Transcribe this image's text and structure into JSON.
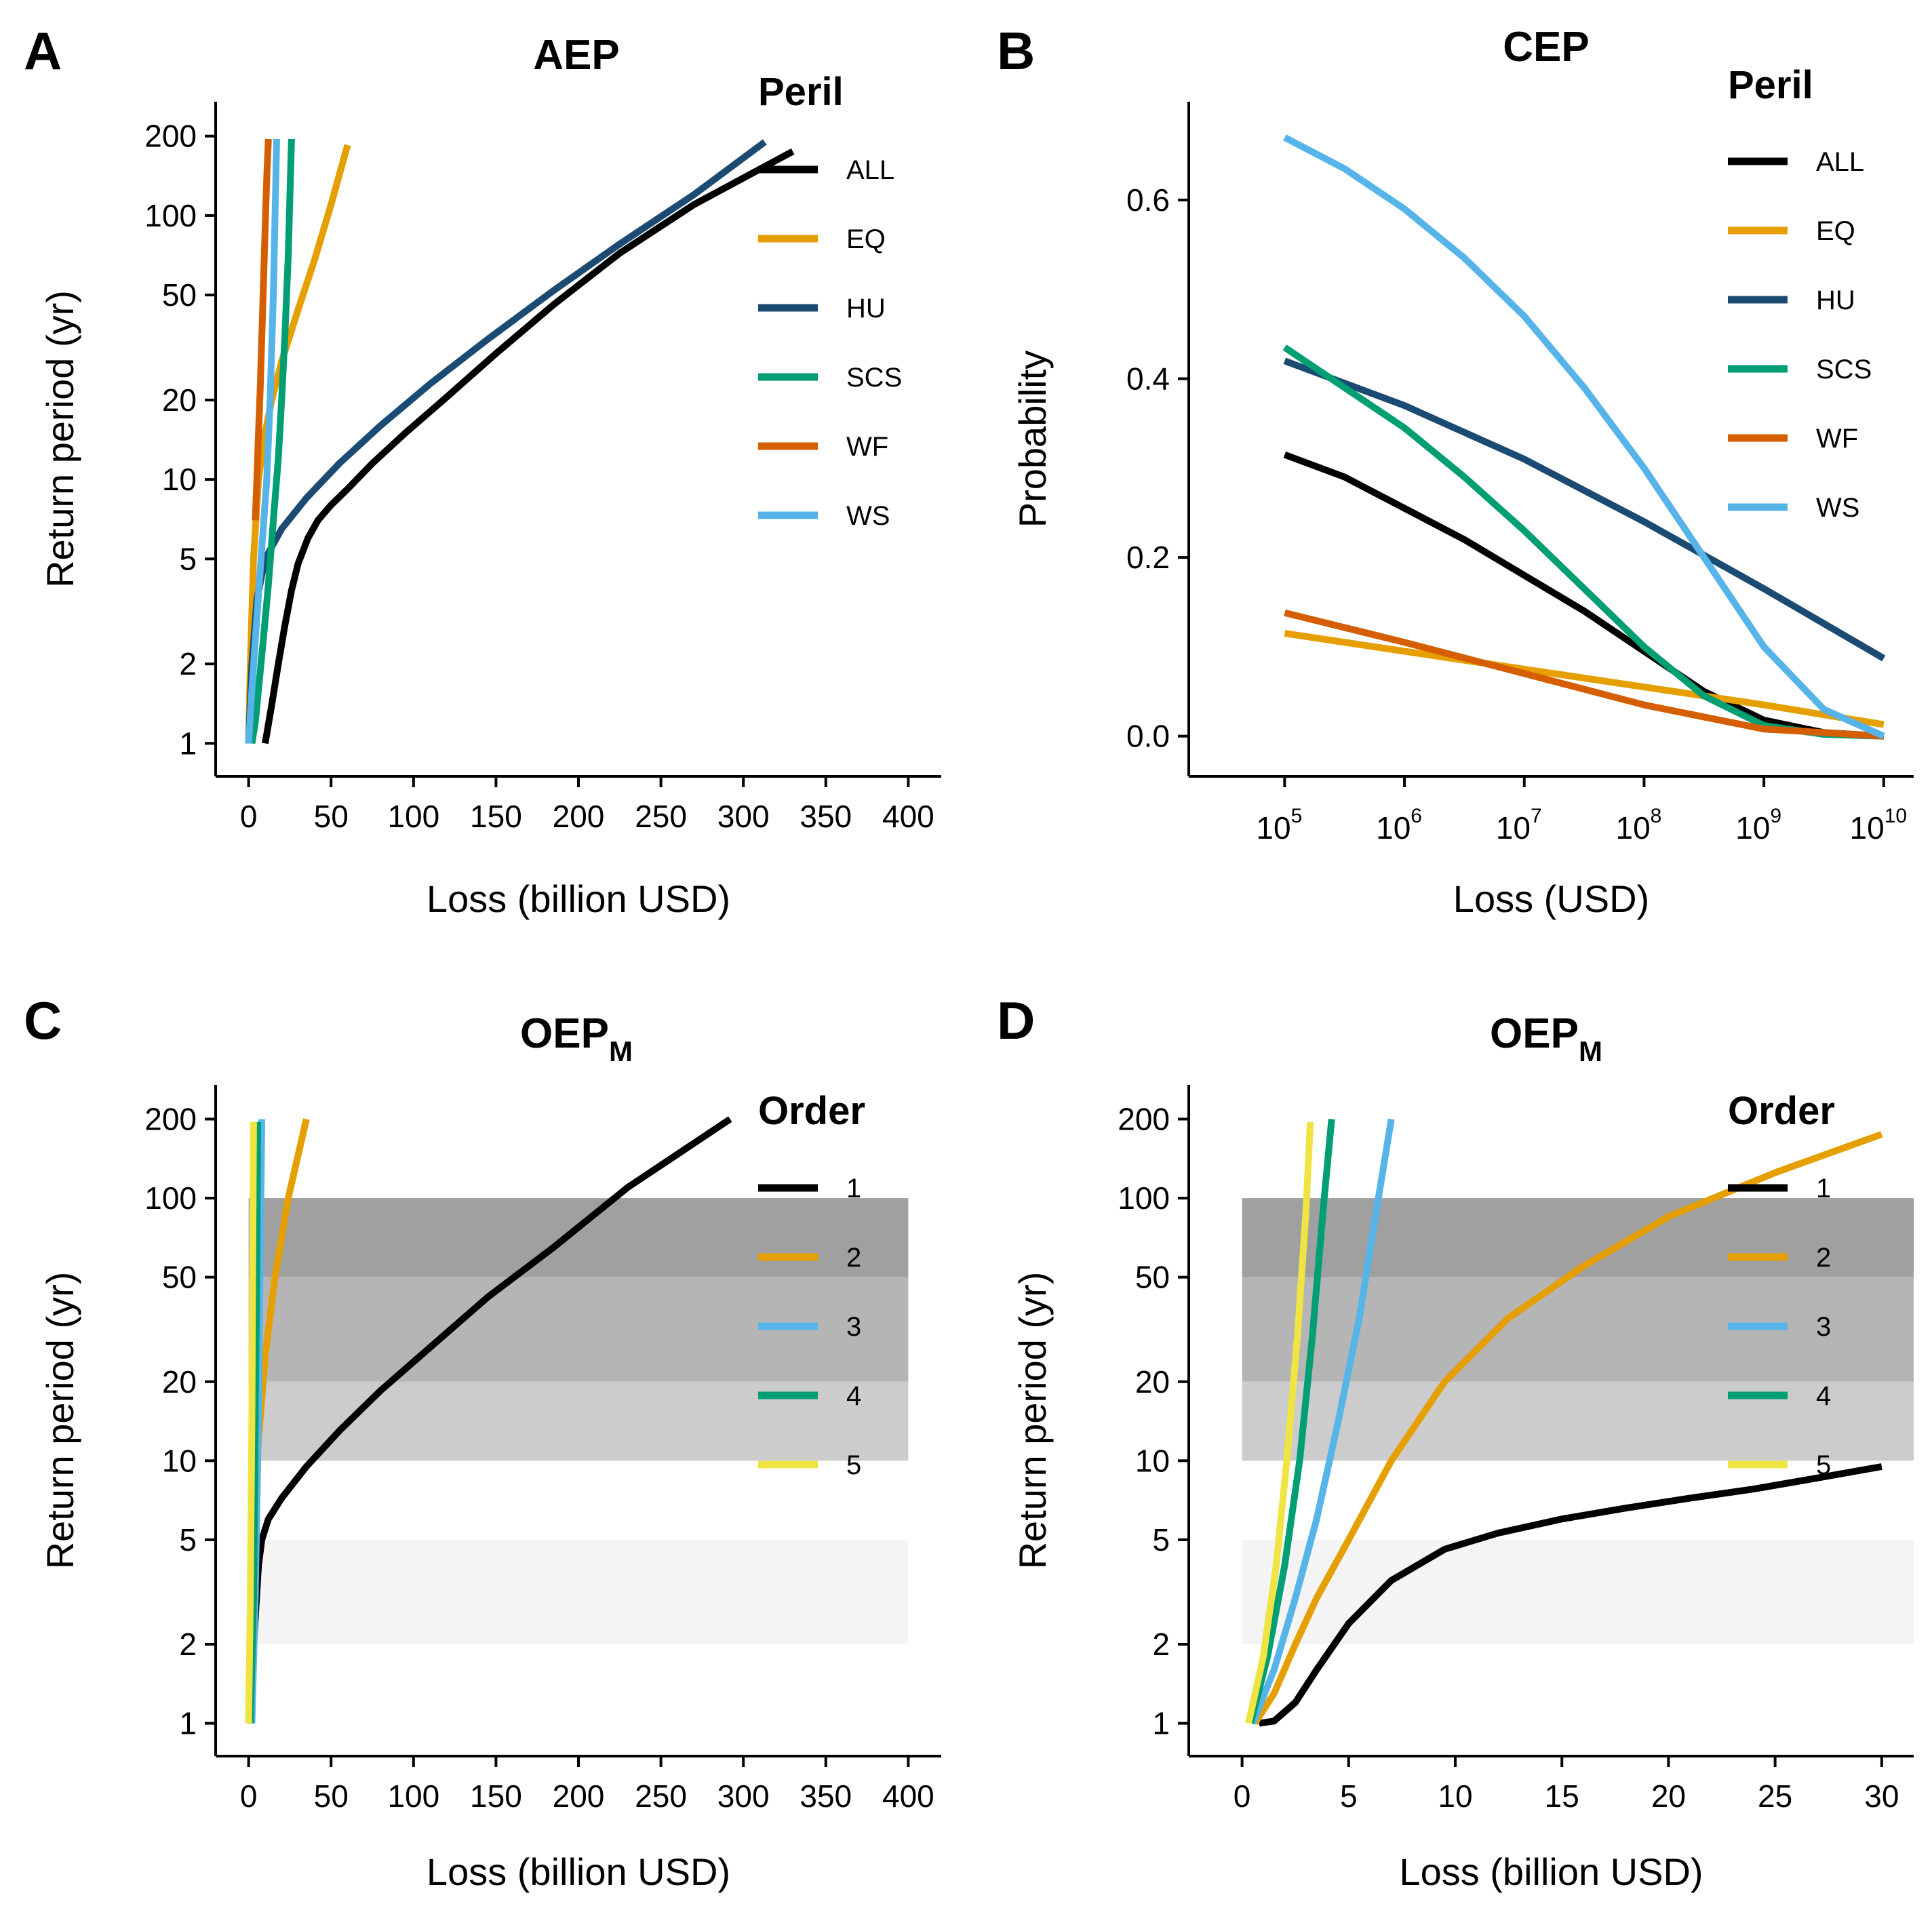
{
  "chart_data": [
    {
      "panel": "A",
      "type": "line",
      "title": "AEP",
      "xlabel": "Loss (billion USD)",
      "ylabel": "Return period (yr)",
      "xlim": [
        -20,
        420
      ],
      "ylim": [
        0.75,
        270
      ],
      "yscale": "log",
      "xticks": [
        0,
        50,
        100,
        150,
        200,
        250,
        300,
        350,
        400
      ],
      "yticks": [
        1,
        2,
        5,
        10,
        20,
        50,
        100,
        200
      ],
      "legend_title": "Peril",
      "legend_position": "top-right",
      "series": [
        {
          "name": "ALL",
          "color": "#000000",
          "x": [
            10,
            14,
            18,
            22,
            26,
            30,
            36,
            42,
            50,
            60,
            75,
            95,
            120,
            150,
            185,
            225,
            270,
            330
          ],
          "y": [
            1,
            1.4,
            2,
            2.8,
            3.8,
            4.8,
            6,
            7,
            8,
            9.2,
            11.5,
            15,
            20.5,
            30,
            46,
            72,
            110,
            175
          ]
        },
        {
          "name": "EQ",
          "color": "#E69F00",
          "x": [
            0,
            1,
            3,
            6,
            10,
            14,
            20,
            30,
            40,
            50,
            60
          ],
          "y": [
            1,
            2,
            5,
            10,
            15,
            20,
            28,
            44,
            68,
            110,
            185
          ]
        },
        {
          "name": "HU",
          "color": "#1B4A72",
          "x": [
            0,
            2,
            5,
            10,
            20,
            35,
            55,
            80,
            110,
            145,
            185,
            225,
            270,
            313
          ],
          "y": [
            1,
            2,
            3.5,
            5,
            6.5,
            8.5,
            11.5,
            16,
            23,
            34,
            52,
            78,
            120,
            190
          ]
        },
        {
          "name": "SCS",
          "color": "#009E73",
          "x": [
            2,
            4,
            6,
            9,
            12,
            15,
            18,
            20,
            22,
            24,
            26
          ],
          "y": [
            1,
            1.2,
            1.6,
            2.5,
            4,
            7,
            12,
            20,
            35,
            70,
            195
          ]
        },
        {
          "name": "WF",
          "color": "#D55E00",
          "x": [
            4,
            5,
            6,
            7,
            8,
            9,
            10,
            11,
            12
          ],
          "y": [
            7,
            10,
            15,
            22,
            35,
            55,
            90,
            140,
            195
          ]
        },
        {
          "name": "WS",
          "color": "#56B4E9",
          "x": [
            0,
            2,
            5,
            8,
            11,
            13,
            15,
            17
          ],
          "y": [
            1,
            1.6,
            3,
            5.5,
            10,
            20,
            50,
            195
          ]
        }
      ]
    },
    {
      "panel": "B",
      "type": "line",
      "title": "CEP",
      "xlabel": "Loss (USD)",
      "ylabel": "Probability",
      "xscale": "log",
      "xlim": [
        4.2,
        10.25
      ],
      "ylim": [
        -0.045,
        0.71
      ],
      "xticks_exp": [
        "5",
        "6",
        "7",
        "8",
        "9",
        "10"
      ],
      "xtick_base": "10",
      "yticks": [
        "0.0",
        "0.2",
        "0.4",
        "0.6"
      ],
      "legend_title": "Peril",
      "legend_position": "top-right",
      "series": [
        {
          "name": "ALL",
          "color": "#000000",
          "log10x": [
            5,
            5.5,
            6,
            6.5,
            7,
            7.5,
            8,
            8.5,
            9,
            9.5,
            10
          ],
          "y": [
            0.315,
            0.29,
            0.255,
            0.22,
            0.18,
            0.14,
            0.095,
            0.05,
            0.018,
            0.004,
            0.0
          ]
        },
        {
          "name": "EQ",
          "color": "#E69F00",
          "log10x": [
            5,
            6,
            7,
            8,
            9,
            10
          ],
          "y": [
            0.115,
            0.095,
            0.075,
            0.055,
            0.035,
            0.013
          ]
        },
        {
          "name": "HU",
          "color": "#1B4A72",
          "log10x": [
            5,
            6,
            7,
            8,
            9,
            10
          ],
          "y": [
            0.42,
            0.37,
            0.31,
            0.24,
            0.165,
            0.087
          ]
        },
        {
          "name": "SCS",
          "color": "#009E73",
          "log10x": [
            5,
            5.5,
            6,
            6.5,
            7,
            7.5,
            8,
            8.5,
            9,
            9.5,
            10
          ],
          "y": [
            0.435,
            0.39,
            0.345,
            0.29,
            0.23,
            0.165,
            0.1,
            0.045,
            0.012,
            0.002,
            0.0
          ]
        },
        {
          "name": "WF",
          "color": "#D55E00",
          "log10x": [
            5,
            6,
            7,
            8,
            9,
            10
          ],
          "y": [
            0.138,
            0.105,
            0.07,
            0.035,
            0.008,
            0.0
          ]
        },
        {
          "name": "WS",
          "color": "#56B4E9",
          "log10x": [
            5,
            5.5,
            6,
            6.5,
            7,
            7.5,
            8,
            8.5,
            9,
            9.5,
            10
          ],
          "y": [
            0.67,
            0.635,
            0.59,
            0.535,
            0.47,
            0.39,
            0.3,
            0.2,
            0.1,
            0.03,
            0.0
          ]
        }
      ]
    },
    {
      "panel": "C",
      "type": "line",
      "title": "OEP",
      "title_subscript": "M",
      "xlabel": "Loss (billion USD)",
      "ylabel": "Return period (yr)",
      "xlim": [
        -20,
        420
      ],
      "ylim": [
        0.75,
        270
      ],
      "yscale": "log",
      "xticks": [
        0,
        50,
        100,
        150,
        200,
        250,
        300,
        350,
        400
      ],
      "yticks": [
        1,
        2,
        5,
        10,
        20,
        50,
        100,
        200
      ],
      "legend_title": "Order",
      "legend_position": "top-right",
      "bands": [
        {
          "y0": 2,
          "y1": 5,
          "color": "#F4F4F4",
          "x0": 0,
          "x1": 400
        },
        {
          "y0": 10,
          "y1": 20,
          "color": "#CCCCCC",
          "x0": 0,
          "x1": 400
        },
        {
          "y0": 20,
          "y1": 50,
          "color": "#B5B5B5",
          "x0": 0,
          "x1": 400
        },
        {
          "y0": 50,
          "y1": 100,
          "color": "#A0A0A0",
          "x0": 0,
          "x1": 400
        }
      ],
      "series": [
        {
          "name": "1",
          "color": "#000000",
          "x": [
            0,
            2,
            4,
            6,
            8,
            12,
            20,
            35,
            55,
            80,
            110,
            145,
            185,
            230,
            292
          ],
          "y": [
            1,
            1.5,
            2.5,
            4,
            5,
            6,
            7.2,
            9.5,
            13,
            18.5,
            27,
            42,
            65,
            110,
            200
          ]
        },
        {
          "name": "2",
          "color": "#E69F00",
          "x": [
            0,
            1,
            3,
            6,
            10,
            16,
            24,
            35
          ],
          "y": [
            1,
            2,
            5,
            12,
            25,
            50,
            100,
            200
          ]
        },
        {
          "name": "3",
          "color": "#56B4E9",
          "x": [
            2,
            4,
            6,
            7,
            8
          ],
          "y": [
            1,
            3,
            15,
            60,
            200
          ]
        },
        {
          "name": "4",
          "color": "#009E73",
          "x": [
            1,
            3,
            4,
            5,
            5.5
          ],
          "y": [
            1,
            3,
            15,
            60,
            195
          ]
        },
        {
          "name": "5",
          "color": "#F0E442",
          "x": [
            0,
            1,
            2,
            2.5,
            3
          ],
          "y": [
            1,
            3,
            15,
            60,
            195
          ]
        }
      ]
    },
    {
      "panel": "D",
      "type": "line",
      "title": "OEP",
      "title_subscript": "M",
      "xlabel": "Loss (billion USD)",
      "ylabel": "Return period (yr)",
      "xlim": [
        -2.5,
        31.5
      ],
      "ylim": [
        0.75,
        270
      ],
      "yscale": "log",
      "xticks": [
        0,
        5,
        10,
        15,
        20,
        25,
        30
      ],
      "yticks": [
        1,
        2,
        5,
        10,
        20,
        50,
        100,
        200
      ],
      "legend_title": "Order",
      "legend_position": "top-right",
      "bands": [
        {
          "y0": 2,
          "y1": 5,
          "color": "#F4F4F4",
          "x0": 0,
          "x1": 31.5
        },
        {
          "y0": 10,
          "y1": 20,
          "color": "#CCCCCC",
          "x0": 0,
          "x1": 31.5
        },
        {
          "y0": 20,
          "y1": 50,
          "color": "#B5B5B5",
          "x0": 0,
          "x1": 31.5
        },
        {
          "y0": 50,
          "y1": 100,
          "color": "#A0A0A0",
          "x0": 0,
          "x1": 31.5
        }
      ],
      "series": [
        {
          "name": "1",
          "color": "#000000",
          "x": [
            0.8,
            1.5,
            2.5,
            3.5,
            5,
            7,
            9.5,
            12,
            15,
            18,
            21,
            24,
            27,
            30
          ],
          "y": [
            1,
            1.02,
            1.2,
            1.6,
            2.4,
            3.5,
            4.6,
            5.3,
            6,
            6.6,
            7.2,
            7.8,
            8.6,
            9.5
          ]
        },
        {
          "name": "2",
          "color": "#E69F00",
          "x": [
            0.6,
            1.5,
            2.5,
            3.5,
            5,
            7,
            9.5,
            12.5,
            16,
            20,
            25,
            30
          ],
          "y": [
            1,
            1.3,
            2,
            3,
            5,
            10,
            20,
            35,
            55,
            85,
            125,
            175
          ]
        },
        {
          "name": "3",
          "color": "#56B4E9",
          "x": [
            0.5,
            1.5,
            2.5,
            3.5,
            4.5,
            5.5,
            6.3,
            7
          ],
          "y": [
            1,
            1.6,
            3,
            6,
            14,
            35,
            90,
            200
          ]
        },
        {
          "name": "4",
          "color": "#009E73",
          "x": [
            0.4,
            1.2,
            2,
            2.7,
            3.3,
            3.8,
            4.2
          ],
          "y": [
            1,
            1.8,
            4,
            10,
            30,
            90,
            200
          ]
        },
        {
          "name": "5",
          "color": "#F0E442",
          "x": [
            0.3,
            1,
            1.6,
            2.1,
            2.6,
            3,
            3.2
          ],
          "y": [
            1,
            1.8,
            4,
            10,
            30,
            90,
            195
          ]
        }
      ]
    }
  ]
}
